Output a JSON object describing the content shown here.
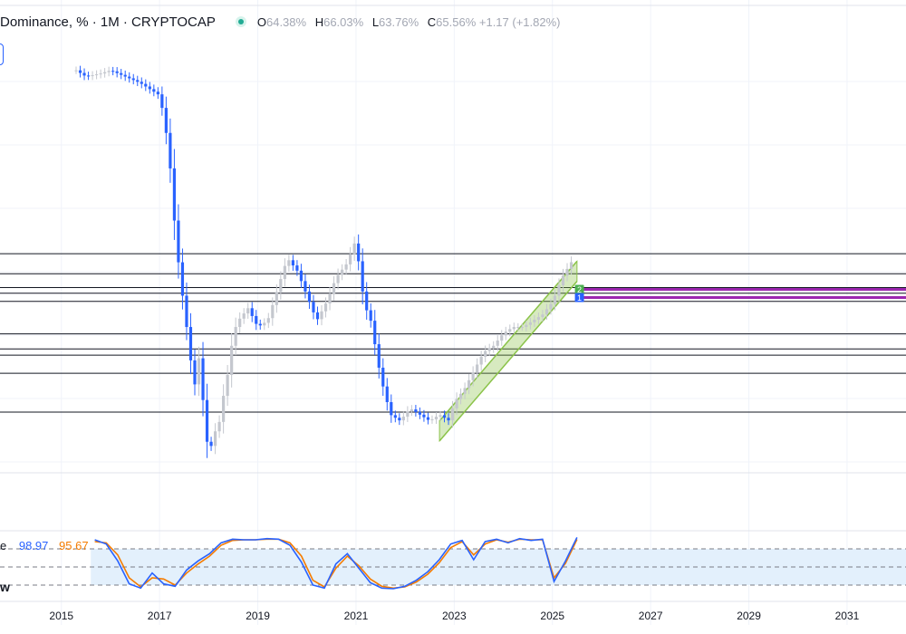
{
  "header": {
    "title": "Dominance, % · 1M · CRYPTOCAP",
    "ohlc": {
      "o_label": "O",
      "o": "64.38%",
      "h_label": "H",
      "h": "66.03%",
      "l_label": "L",
      "l": "63.76%",
      "c_label": "C",
      "c": "65.56%",
      "change": "+1.17 (+1.82%)"
    }
  },
  "indicator": {
    "name_fragment": "e",
    "k": "98.97",
    "d": "95.67",
    "label_fragment": "w"
  },
  "colors": {
    "up": "#c4c7ce",
    "down": "#2962ff",
    "k_line": "#2962ff",
    "d_line": "#f57c00",
    "channel": "#8bc34a",
    "purple": "#9c27b0",
    "band": "#e3f0fc"
  },
  "chart_data": {
    "type": "candlestick",
    "title": "Dominance, % · 1M · CRYPTOCAP",
    "x_ticks": [
      "2015",
      "2017",
      "2019",
      "2021",
      "2023",
      "2025",
      "2027",
      "2029",
      "2031"
    ],
    "x_range": [
      2013.75,
      2032.2
    ],
    "close_series": {
      "x": [
        2015.3,
        2015.5,
        2015.8,
        2016.0,
        2016.3,
        2016.6,
        2016.8,
        2017.0,
        2017.1,
        2017.2,
        2017.3,
        2017.4,
        2017.5,
        2017.6,
        2017.7,
        2017.8,
        2017.9,
        2018.0,
        2018.1,
        2018.2,
        2018.3,
        2018.4,
        2018.5,
        2018.6,
        2018.8,
        2019.0,
        2019.2,
        2019.4,
        2019.6,
        2019.7,
        2019.8,
        2019.9,
        2020.0,
        2020.2,
        2020.4,
        2020.6,
        2020.8,
        2020.9,
        2021.0,
        2021.1,
        2021.2,
        2021.3,
        2021.5,
        2021.7,
        2021.9,
        2022.1,
        2022.3,
        2022.5,
        2022.7,
        2022.9,
        2023.0,
        2023.2,
        2023.4,
        2023.6,
        2023.8,
        2024.0,
        2024.2,
        2024.4,
        2024.6,
        2024.8,
        2025.0,
        2025.2,
        2025.4
      ],
      "close": [
        96,
        95,
        95.5,
        96,
        95,
        94,
        93,
        92,
        88,
        82,
        72,
        64,
        58,
        52,
        45,
        50,
        42,
        34,
        38,
        39,
        44,
        48,
        54,
        56,
        58,
        55,
        56,
        61,
        66,
        65,
        64,
        62,
        60,
        56,
        59,
        63,
        65,
        67,
        69,
        62,
        58,
        56,
        47,
        41,
        40,
        42,
        41,
        40,
        41,
        40,
        43,
        45,
        48,
        51,
        52,
        54,
        55,
        55,
        56,
        57,
        59,
        63,
        65.56
      ],
      "y_range": [
        32,
        100
      ]
    },
    "stoch_rsi": {
      "k": [
        95,
        88,
        60,
        22,
        15,
        40,
        22,
        18,
        45,
        60,
        72,
        90,
        96,
        95,
        95,
        97,
        96,
        86,
        58,
        20,
        15,
        55,
        72,
        48,
        24,
        15,
        14,
        18,
        28,
        42,
        62,
        88,
        94,
        62,
        92,
        96,
        90,
        97,
        94,
        96,
        26,
        60,
        98.97
      ],
      "d": [
        92,
        90,
        70,
        32,
        17,
        32,
        30,
        20,
        40,
        55,
        68,
        86,
        94,
        95,
        95,
        96,
        96,
        90,
        68,
        28,
        17,
        48,
        68,
        52,
        30,
        18,
        15,
        17,
        25,
        38,
        57,
        82,
        92,
        70,
        88,
        95,
        91,
        96,
        95,
        95,
        32,
        56,
        95.67
      ],
      "range": [
        0,
        100
      ],
      "levels": [
        80,
        20
      ]
    },
    "horizontal_levels_pct": [
      66.7,
      63.5,
      61.3,
      60.4,
      59.1,
      53.9,
      51.5,
      50.5,
      47.6,
      41.4
    ],
    "purple_levels_pct": [
      61.0,
      59.7
    ],
    "channel": {
      "start": [
        2022.7,
        40
      ],
      "end": [
        2025.5,
        65.5
      ],
      "width_pct": 3.2
    },
    "markers": [
      "2",
      "1"
    ]
  }
}
